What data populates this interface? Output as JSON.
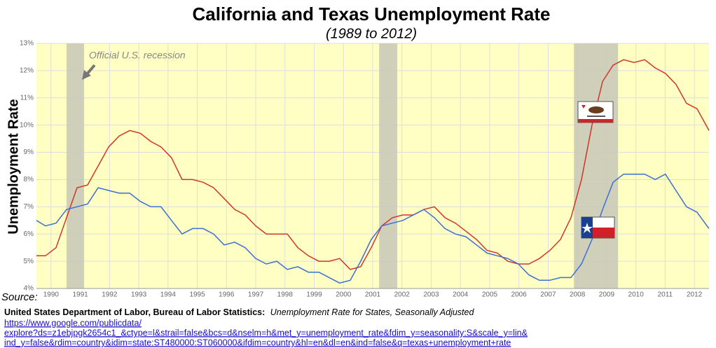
{
  "chart_data": {
    "type": "line",
    "title": "California and Texas Unemployment Rate",
    "subtitle": "(1989 to 2012)",
    "ylabel": "Unemployment Rate",
    "annotation": "Official U.S. recession",
    "recessions": [
      [
        1990.53,
        1991.13
      ],
      [
        2001.22,
        2001.84
      ],
      [
        2007.88,
        2009.39
      ]
    ],
    "x": [
      1989.5,
      1989.81,
      1990.17,
      1990.53,
      1990.89,
      1991.25,
      1991.61,
      1991.97,
      1992.33,
      1992.69,
      1993.05,
      1993.41,
      1993.76,
      1994.12,
      1994.48,
      1994.84,
      1995.2,
      1995.56,
      1995.92,
      1996.28,
      1996.64,
      1997.0,
      1997.36,
      1997.72,
      1998.08,
      1998.44,
      1998.8,
      1999.16,
      1999.51,
      1999.87,
      2000.23,
      2000.59,
      2000.95,
      2001.31,
      2001.67,
      2002.03,
      2002.39,
      2002.75,
      2003.11,
      2003.47,
      2003.83,
      2004.19,
      2004.55,
      2004.91,
      2005.26,
      2005.62,
      2005.98,
      2006.34,
      2006.7,
      2007.06,
      2007.42,
      2007.78,
      2008.14,
      2008.5,
      2008.86,
      2009.22,
      2009.58,
      2009.94,
      2010.3,
      2010.66,
      2011.01,
      2011.37,
      2011.73,
      2012.09,
      2012.5
    ],
    "series": [
      {
        "color": "#d0352a",
        "values": [
          5.2,
          5.2,
          5.5,
          6.6,
          7.7,
          7.8,
          8.5,
          9.2,
          9.6,
          9.8,
          9.7,
          9.4,
          9.2,
          8.8,
          8.0,
          8.0,
          7.9,
          7.7,
          7.3,
          6.9,
          6.7,
          6.3,
          6.0,
          6.0,
          6.0,
          5.5,
          5.2,
          5.0,
          5.0,
          5.1,
          4.7,
          4.8,
          5.5,
          6.3,
          6.6,
          6.7,
          6.7,
          6.9,
          7.0,
          6.6,
          6.4,
          6.1,
          5.8,
          5.4,
          5.3,
          5.0,
          4.9,
          4.9,
          5.1,
          5.4,
          5.8,
          6.6,
          8.0,
          10.0,
          11.6,
          12.2,
          12.4,
          12.3,
          12.4,
          12.1,
          11.9,
          11.5,
          10.8,
          10.6,
          9.8
        ]
      },
      {
        "color": "#3b6fd6",
        "values": [
          6.5,
          6.3,
          6.4,
          6.9,
          7.0,
          7.1,
          7.7,
          7.6,
          7.5,
          7.5,
          7.2,
          7.0,
          7.0,
          6.5,
          6.0,
          6.2,
          6.2,
          6.0,
          5.6,
          5.7,
          5.5,
          5.1,
          4.9,
          5.0,
          4.7,
          4.8,
          4.6,
          4.6,
          4.4,
          4.2,
          4.3,
          5.0,
          5.8,
          6.3,
          6.4,
          6.5,
          6.7,
          6.9,
          6.6,
          6.2,
          6.0,
          5.9,
          5.6,
          5.3,
          5.2,
          5.1,
          4.9,
          4.5,
          4.3,
          4.3,
          4.4,
          4.4,
          4.9,
          5.8,
          6.9,
          7.9,
          8.2,
          8.2,
          8.2,
          8.0,
          8.2,
          7.6,
          7.0,
          6.8,
          6.2
        ]
      }
    ],
    "xlim": [
      1989.5,
      2012.5
    ],
    "xticks": [
      1990,
      1991,
      1992,
      1993,
      1994,
      1995,
      1996,
      1997,
      1998,
      1999,
      2000,
      2001,
      2002,
      2003,
      2004,
      2005,
      2006,
      2007,
      2008,
      2009,
      2010,
      2011,
      2012
    ],
    "ylim": [
      4,
      13
    ],
    "yticks": [
      {
        "value": 4,
        "label": "4%"
      },
      {
        "value": 5,
        "label": "5%"
      },
      {
        "value": 6,
        "label": "6%"
      },
      {
        "value": 7,
        "label": "7%"
      },
      {
        "value": 8,
        "label": "8%"
      },
      {
        "value": 9,
        "label": "9%"
      },
      {
        "value": 10,
        "label": "10%"
      },
      {
        "value": 11,
        "label": "11%"
      },
      {
        "value": 12,
        "label": "12%"
      },
      {
        "value": 13,
        "label": "13%"
      }
    ],
    "grid": true,
    "source": {
      "label": "Source:",
      "org": "United States Department of Labor, Bureau of Labor Statistics:",
      "dataset": "Unemployment Rate for States, Seasonally Adjusted",
      "url_lines": [
        "https://www.google.com/publicdata/",
        "explore?ds=z1ebjpgk2654c1_&ctype=l&strail=false&bcs=d&nselm=h&met_y=unemployment_rate&fdim_y=seasonality:S&scale_y=lin&",
        "ind_y=false&rdim=country&idim=state:ST480000:ST060000&ifdim=country&hl=en&dl=en&ind=false&q=texas+unemployment+rate"
      ]
    }
  }
}
